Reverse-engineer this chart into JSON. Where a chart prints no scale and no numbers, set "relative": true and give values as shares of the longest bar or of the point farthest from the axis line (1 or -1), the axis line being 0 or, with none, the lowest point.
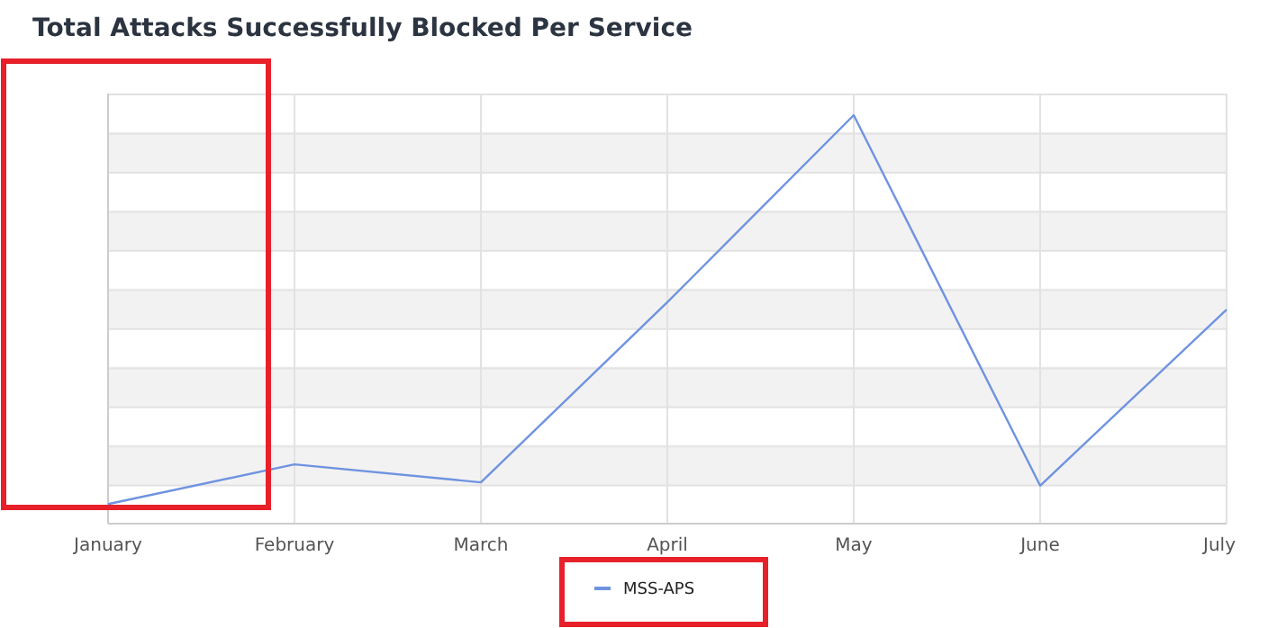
{
  "chart_data": {
    "type": "line",
    "title": "Total Attacks Successfully Blocked Per Service",
    "categories": [
      "January",
      "February",
      "March",
      "April",
      "May",
      "June",
      "July"
    ],
    "relative": true,
    "series": [
      {
        "name": "MSS-APS",
        "color": "#6f93e0",
        "values": [
          0.048,
          0.145,
          0.101,
          0.542,
          1,
          0.093,
          0.524
        ]
      }
    ],
    "grid": true,
    "legend": "bottom",
    "marker": "none",
    "line_style": "solid"
  }
}
